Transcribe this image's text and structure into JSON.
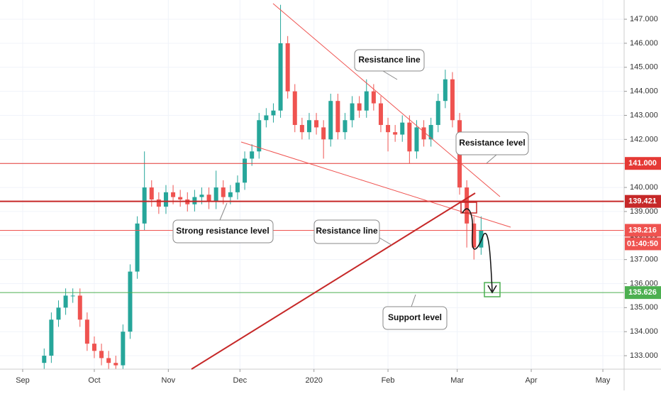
{
  "chart_data": {
    "type": "candlestick",
    "xlim": [
      -9.5,
      251.9
    ],
    "xticks": [
      {
        "value": 0,
        "label": "Sep"
      },
      {
        "value": 30,
        "label": "Oct"
      },
      {
        "value": 61,
        "label": "Nov"
      },
      {
        "value": 91,
        "label": "Dec"
      },
      {
        "value": 122,
        "label": "2020"
      },
      {
        "value": 153,
        "label": "Feb"
      },
      {
        "value": 182,
        "label": "Mar"
      },
      {
        "value": 213,
        "label": "Apr"
      },
      {
        "value": 243,
        "label": "May"
      }
    ],
    "ylim": [
      132.44,
      147.8
    ],
    "yticks": [
      {
        "value": 133,
        "label": "133.000"
      },
      {
        "value": 134,
        "label": "134.000"
      },
      {
        "value": 135,
        "label": "135.000"
      },
      {
        "value": 136,
        "label": "136.000"
      },
      {
        "value": 137,
        "label": "137.000"
      },
      {
        "value": 138,
        "label": "138.000"
      },
      {
        "value": 139,
        "label": "139.000"
      },
      {
        "value": 140,
        "label": "140.000"
      },
      {
        "value": 141,
        "label": "141.000"
      },
      {
        "value": 142,
        "label": "142.000"
      },
      {
        "value": 143,
        "label": "143.000"
      },
      {
        "value": 144,
        "label": "144.000"
      },
      {
        "value": 145,
        "label": "145.000"
      },
      {
        "value": 146,
        "label": "146.000"
      },
      {
        "value": 147,
        "label": "147.000"
      }
    ],
    "up_color": "#26a69a",
    "down_color": "#ef5350",
    "x": [
      9,
      12,
      15,
      18,
      21,
      24,
      27,
      30,
      33,
      36,
      39,
      42,
      45,
      48,
      51,
      54,
      57,
      60,
      63,
      66,
      69,
      72,
      75,
      78,
      81,
      84,
      87,
      90,
      93,
      96,
      99,
      102,
      105,
      108,
      111,
      114,
      117,
      120,
      123,
      126,
      129,
      132,
      135,
      138,
      141,
      144,
      147,
      150,
      153,
      156,
      159,
      162,
      165,
      168,
      171,
      174,
      177,
      180,
      183,
      186,
      189,
      192
    ],
    "open": [
      132.7,
      133.0,
      134.5,
      135.0,
      135.5,
      135.5,
      134.5,
      133.5,
      133.2,
      132.9,
      132.7,
      132.6,
      134.0,
      136.5,
      138.5,
      140.0,
      139.5,
      139.2,
      139.8,
      139.6,
      139.5,
      139.3,
      139.6,
      139.7,
      139.4,
      140.0,
      139.6,
      139.8,
      140.2,
      141.2,
      141.5,
      142.8,
      143.0,
      143.2,
      146.0,
      144.0,
      142.6,
      142.3,
      142.8,
      142.5,
      142.0,
      143.6,
      142.3,
      142.8,
      143.5,
      143.2,
      144.0,
      143.5,
      142.6,
      142.3,
      142.2,
      142.7,
      141.5,
      142.5,
      142.0,
      142.6,
      143.6,
      144.5,
      142.8,
      140.0,
      138.5,
      137.5
    ],
    "high": [
      133.3,
      134.8,
      135.3,
      135.8,
      135.8,
      135.8,
      134.8,
      133.8,
      133.5,
      133.2,
      133.0,
      134.3,
      136.8,
      138.8,
      141.5,
      140.3,
      139.8,
      140.1,
      140.1,
      139.9,
      139.8,
      139.9,
      140.0,
      140.0,
      140.7,
      140.3,
      140.1,
      140.5,
      141.5,
      141.8,
      143.1,
      143.3,
      143.5,
      147.6,
      146.3,
      144.3,
      142.9,
      143.1,
      143.1,
      142.8,
      143.9,
      143.9,
      143.1,
      143.8,
      143.8,
      144.5,
      144.3,
      143.8,
      142.9,
      142.6,
      143.0,
      143.0,
      142.8,
      142.8,
      142.9,
      143.9,
      144.9,
      144.8,
      143.1,
      140.3,
      138.8,
      138.8
    ],
    "low": [
      132.4,
      132.7,
      134.2,
      134.7,
      135.2,
      134.2,
      133.2,
      132.9,
      132.6,
      132.4,
      132.3,
      132.3,
      133.7,
      136.2,
      138.2,
      139.2,
      138.9,
      138.9,
      139.3,
      139.2,
      139.0,
      139.0,
      139.3,
      139.1,
      139.1,
      139.3,
      139.3,
      139.5,
      139.9,
      140.9,
      141.2,
      142.5,
      142.7,
      142.9,
      143.7,
      142.3,
      142.0,
      142.0,
      142.2,
      141.2,
      141.7,
      142.0,
      142.0,
      142.5,
      142.9,
      142.9,
      143.2,
      142.3,
      141.5,
      141.9,
      141.9,
      141.0,
      141.2,
      141.7,
      141.7,
      142.3,
      143.3,
      142.5,
      139.7,
      137.5,
      137.0,
      137.2
    ],
    "close": [
      133.0,
      134.5,
      135.0,
      135.5,
      135.5,
      134.5,
      133.5,
      133.2,
      132.9,
      132.7,
      132.6,
      134.0,
      136.5,
      138.5,
      140.0,
      139.5,
      139.2,
      139.8,
      139.6,
      139.5,
      139.3,
      139.6,
      139.7,
      139.4,
      140.0,
      139.6,
      139.8,
      140.2,
      141.2,
      141.5,
      142.8,
      143.0,
      143.2,
      146.0,
      144.0,
      142.6,
      142.3,
      142.8,
      142.5,
      142.0,
      143.6,
      142.3,
      142.8,
      143.5,
      143.2,
      144.0,
      143.5,
      142.6,
      142.3,
      142.2,
      142.7,
      141.5,
      142.5,
      142.0,
      142.6,
      143.6,
      144.5,
      142.8,
      140.0,
      138.5,
      137.5,
      138.2
    ],
    "levels": [
      {
        "value": 141,
        "label": "141.000",
        "color": "#e53935",
        "width": 1
      },
      {
        "value": 139.421,
        "label": "139.421",
        "color": "#c62828",
        "width": 2
      },
      {
        "value": 138.216,
        "label": "138.216",
        "color": "#ef5350",
        "width": 1
      },
      {
        "value": 135.626,
        "label": "135.626",
        "color": "#4caf50",
        "width": 1
      }
    ],
    "timer": "01:40:50",
    "annotations": [
      "Resistance line",
      "Resistance level",
      "Strong resistance level",
      "Resistance line",
      "Support level"
    ]
  }
}
